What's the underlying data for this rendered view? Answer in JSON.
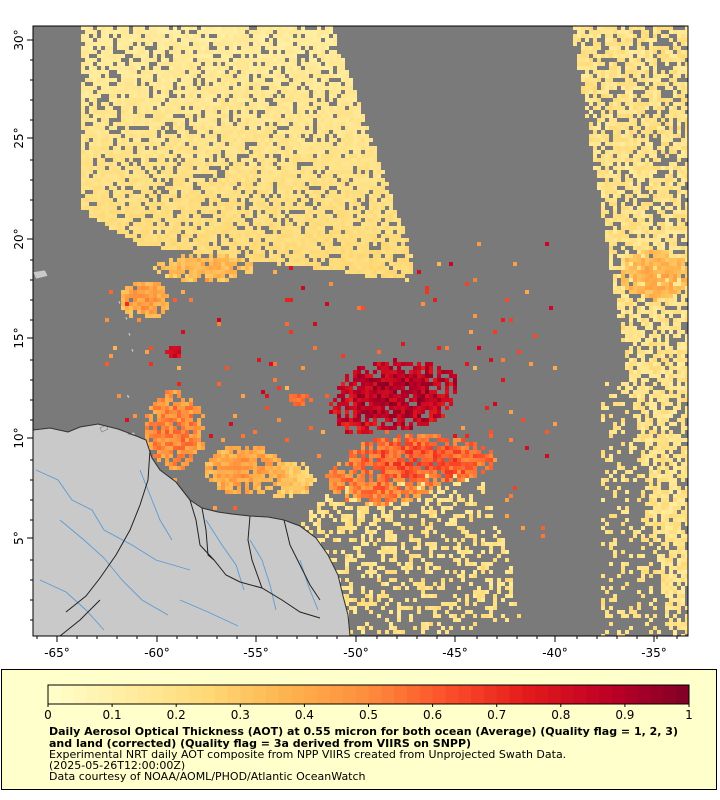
{
  "colors": {
    "no_data": "#7a7a7a",
    "land": "#c9c9c9",
    "border": "#222222",
    "river": "#5b9bd5",
    "legend_bg": "#ffffcc"
  },
  "map": {
    "lon_range": [
      -66,
      -33
    ],
    "lat_range": [
      0,
      31
    ],
    "lon_ticks": [
      "-65°",
      "-60°",
      "-55°",
      "-50°",
      "-45°",
      "-40°",
      "-35°"
    ],
    "lat_ticks": [
      "30°",
      "25°",
      "20°",
      "15°",
      "10°",
      "5°"
    ]
  },
  "legend": {
    "colormap": "YlOrRd",
    "vmin": 0,
    "vmax": 1,
    "tick_labels": [
      "0",
      "0.1",
      "0.2",
      "0.3",
      "0.4",
      "0.5",
      "0.6",
      "0.7",
      "0.8",
      "0.9",
      "1"
    ],
    "colors": [
      "#ffffcc",
      "#ffeda0",
      "#fed976",
      "#feb24c",
      "#fd8d3c",
      "#fc4e2a",
      "#e31a1c",
      "#bd0026",
      "#800026"
    ]
  },
  "caption": {
    "title": "Daily Aerosol Optical Thickness (AOT) at 0.55 micron for both ocean (Average) (Quality flag = 1, 2, 3) and land (corrected) (Quality flag = 3a derived from VIIRS on SNPP)",
    "description": "Experimental NRT daily AOT composite from NPP VIIRS created from Unprojected Swath Data.",
    "time": "(2025-05-26T12:00:00Z)",
    "credit": "Data courtesy of NOAA/AOML/PHOD/Atlantic OceanWatch"
  }
}
